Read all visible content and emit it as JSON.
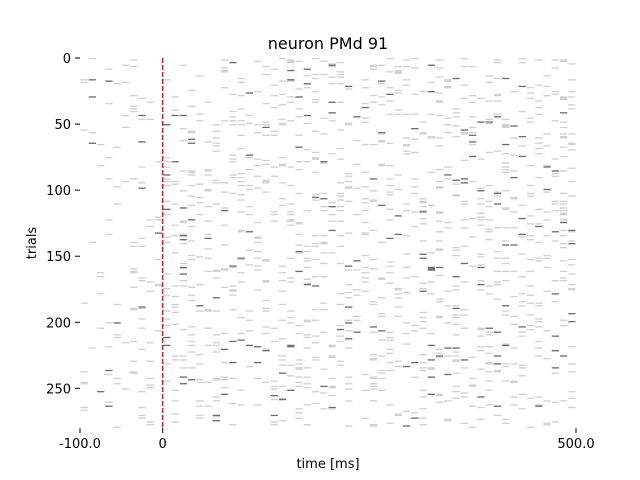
{
  "chart_data": {
    "type": "raster",
    "title": "neuron PMd 91",
    "xlabel": "time [ms]",
    "ylabel": "trials",
    "xlim": [
      -100,
      500
    ],
    "ylim": [
      280,
      0
    ],
    "x_ticks": [
      {
        "value": -100,
        "label": "-100.0"
      },
      {
        "value": 0,
        "label": "0"
      },
      {
        "value": 500,
        "label": "500.0"
      }
    ],
    "y_ticks": [
      {
        "value": 0,
        "label": "0"
      },
      {
        "value": 50,
        "label": "50"
      },
      {
        "value": 100,
        "label": "100"
      },
      {
        "value": 150,
        "label": "150"
      },
      {
        "value": 200,
        "label": "200"
      },
      {
        "value": 250,
        "label": "250"
      }
    ],
    "event_line": {
      "x": 0,
      "style": "dashed",
      "color": "#d62728"
    },
    "n_trials": 280,
    "bin_width_ms": 10,
    "spike_colors": {
      "light": "#cfcfcf",
      "dark": "#6b6b6b"
    },
    "grid": false
  }
}
